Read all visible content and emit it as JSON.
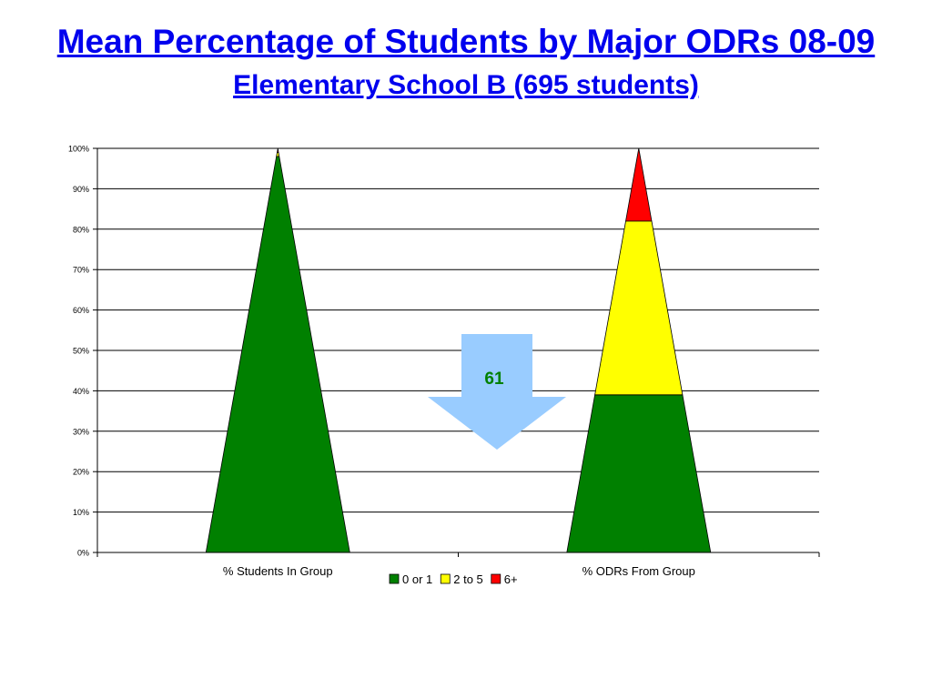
{
  "slide": {
    "title": "Mean Percentage of Students by Major ODRs 08-09",
    "subtitle": "Elementary School B  (695 students)"
  },
  "chart_data": {
    "type": "bar",
    "stacked": true,
    "bar_shape": "cone",
    "categories": [
      "% Students In Group",
      "% ODRs From Group"
    ],
    "series": [
      {
        "name": "0 or 1",
        "color": "#008000",
        "values": [
          98,
          39
        ]
      },
      {
        "name": "2 to 5",
        "color": "#ffff00",
        "values": [
          1,
          43
        ]
      },
      {
        "name": "6+",
        "color": "#ff0000",
        "values": [
          1,
          18
        ]
      }
    ],
    "ylim": [
      0,
      100
    ],
    "yticks": [
      "0%",
      "10%",
      "20%",
      "30%",
      "40%",
      "50%",
      "60%",
      "70%",
      "80%",
      "90%",
      "100%"
    ],
    "grid": true,
    "legend": "bottom",
    "annotation": {
      "text": "61",
      "shape": "down-arrow",
      "fill_color": "#99ccff",
      "text_color": "#008000"
    }
  }
}
